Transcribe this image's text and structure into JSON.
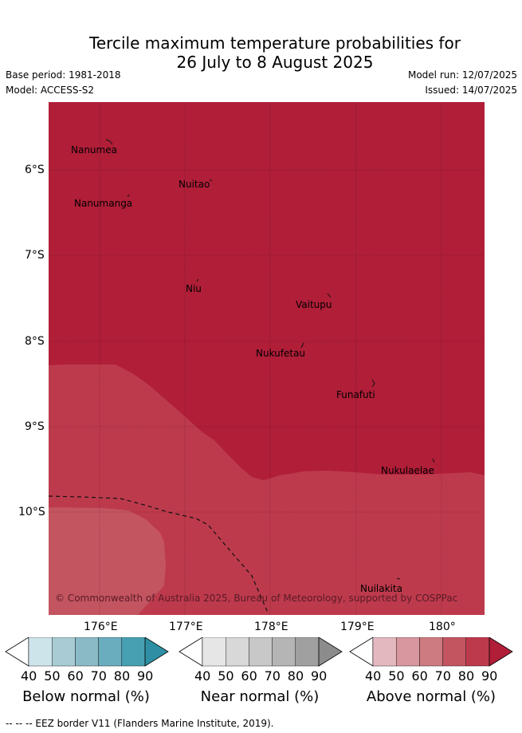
{
  "header": {
    "title_line1": "Tercile maximum temperature probabilities for",
    "title_line2": "26 July to 8 August 2025",
    "base_period": "Base period: 1981-2018",
    "model": "Model: ACCESS-S2",
    "model_run": "Model run: 12/07/2025",
    "issued": "Issued: 14/07/2025"
  },
  "map": {
    "lat_ticks": [
      "6°S",
      "7°S",
      "8°S",
      "9°S",
      "10°S"
    ],
    "lon_ticks": [
      "176°E",
      "177°E",
      "178°E",
      "179°E",
      "180°"
    ],
    "places": [
      "Nanumea",
      "Nuitao",
      "Nanumanga",
      "Niu",
      "Vaitupu",
      "Nukufetau",
      "Funafuti",
      "Nukulaelae",
      "Nuilakita"
    ],
    "credit": "© Commonwealth of Australia 2025, Bureau of Meteorology, supported by COSPPac",
    "colors": {
      "above_90": "#b01e38",
      "above_80": "#bd3a4c",
      "above_70": "#c35560"
    }
  },
  "colorbars": [
    {
      "label": "Below normal (%)",
      "ticks": [
        "40",
        "50",
        "60",
        "70",
        "80",
        "90"
      ],
      "colors": [
        "#ffffff",
        "#cde4ea",
        "#a9cbd3",
        "#8bbac7",
        "#6aadbe",
        "#46a0b2",
        "#2e8fa4"
      ]
    },
    {
      "label": "Near normal (%)",
      "ticks": [
        "40",
        "50",
        "60",
        "70",
        "80",
        "90"
      ],
      "colors": [
        "#ffffff",
        "#e6e6e6",
        "#d8d8d8",
        "#c8c8c8",
        "#b5b5b5",
        "#a0a0a0",
        "#8c8c8c"
      ]
    },
    {
      "label": "Above normal (%)",
      "ticks": [
        "40",
        "50",
        "60",
        "70",
        "80",
        "90"
      ],
      "colors": [
        "#ffffff",
        "#e3b8bf",
        "#d8969e",
        "#cd7a80",
        "#c35560",
        "#bd3a4c",
        "#b01e38"
      ]
    }
  ],
  "footnote": "--  --  -- EEZ border V11 (Flanders Marine Institute, 2019)."
}
